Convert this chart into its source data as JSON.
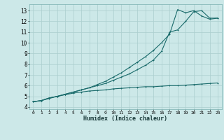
{
  "title": "",
  "xlabel": "Humidex (Indice chaleur)",
  "bg_color": "#cce8e8",
  "grid_color": "#aacece",
  "line_color": "#1a6b6b",
  "xlim": [
    -0.5,
    23.5
  ],
  "ylim": [
    3.8,
    13.6
  ],
  "xticks": [
    0,
    1,
    2,
    3,
    4,
    5,
    6,
    7,
    8,
    9,
    10,
    11,
    12,
    13,
    14,
    15,
    16,
    17,
    18,
    19,
    20,
    21,
    22,
    23
  ],
  "yticks": [
    4,
    5,
    6,
    7,
    8,
    9,
    10,
    11,
    12,
    13
  ],
  "line1_x": [
    0,
    1,
    2,
    3,
    4,
    5,
    6,
    7,
    8,
    9,
    10,
    11,
    12,
    13,
    14,
    15,
    16,
    17,
    18,
    19,
    20,
    21,
    22,
    23
  ],
  "line1_y": [
    4.5,
    4.6,
    4.8,
    5.0,
    5.15,
    5.3,
    5.4,
    5.5,
    5.55,
    5.6,
    5.7,
    5.75,
    5.8,
    5.85,
    5.9,
    5.9,
    5.95,
    6.0,
    6.0,
    6.05,
    6.1,
    6.15,
    6.2,
    6.25
  ],
  "line2_x": [
    0,
    1,
    2,
    3,
    4,
    5,
    6,
    7,
    8,
    9,
    10,
    11,
    12,
    13,
    14,
    15,
    16,
    17,
    18,
    19,
    20,
    21,
    22,
    23
  ],
  "line2_y": [
    4.5,
    4.6,
    4.85,
    5.0,
    5.2,
    5.4,
    5.6,
    5.8,
    6.1,
    6.4,
    6.8,
    7.2,
    7.7,
    8.2,
    8.7,
    9.3,
    10.0,
    10.8,
    13.1,
    12.8,
    13.0,
    12.5,
    12.2,
    12.3
  ],
  "line3_x": [
    0,
    1,
    2,
    3,
    4,
    5,
    6,
    7,
    8,
    9,
    10,
    11,
    12,
    13,
    14,
    15,
    16,
    17,
    18,
    19,
    20,
    21,
    22,
    23
  ],
  "line3_y": [
    4.5,
    4.6,
    4.85,
    5.0,
    5.2,
    5.4,
    5.6,
    5.8,
    6.0,
    6.2,
    6.5,
    6.8,
    7.1,
    7.5,
    7.9,
    8.4,
    9.2,
    11.0,
    11.2,
    12.0,
    12.9,
    13.0,
    12.3,
    12.3
  ]
}
